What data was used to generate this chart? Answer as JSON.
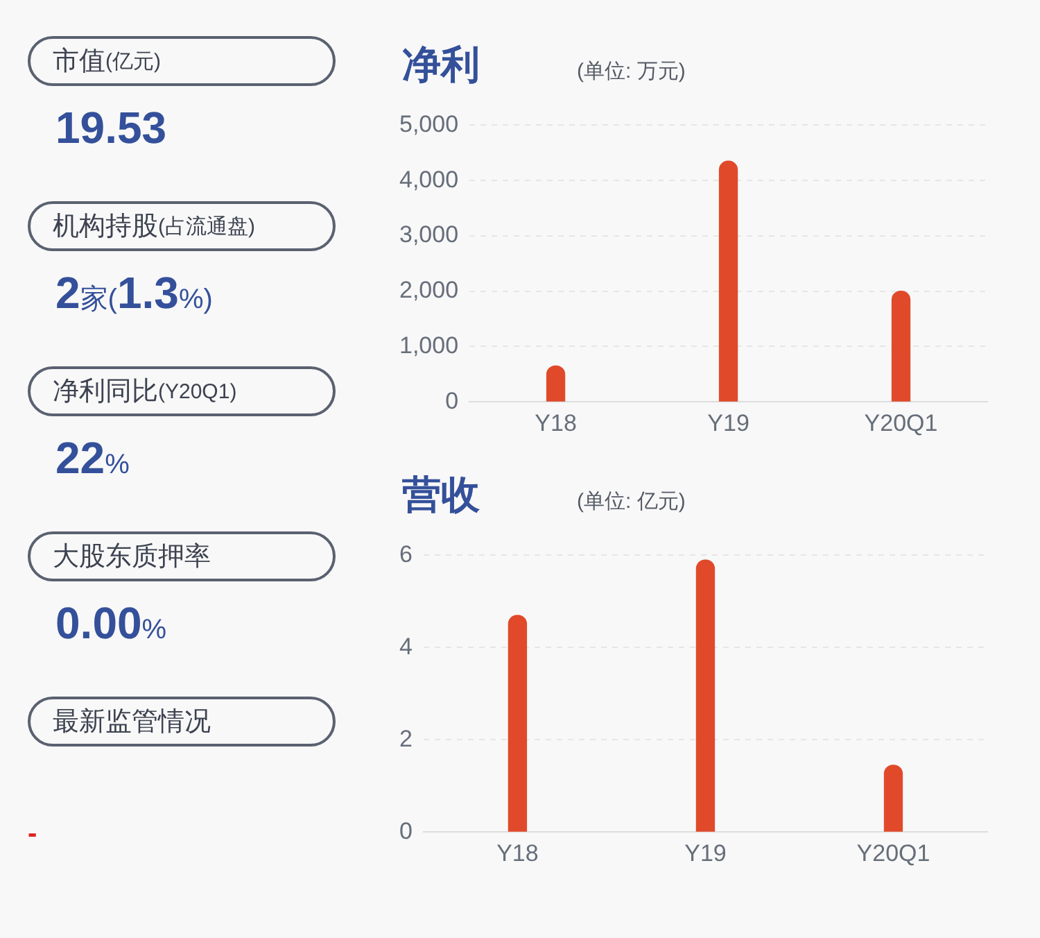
{
  "chart_data": [
    {
      "type": "other",
      "annotations": [
        "市值(亿元)",
        "19.53",
        "机构持股(占流通盘)",
        "2家(1.3%)",
        "净利同比(Y20Q1)",
        "22%",
        "大股东质押率",
        "0.00%",
        "最新监管情况",
        "-"
      ]
    },
    {
      "type": "bar",
      "title": "净利",
      "subtitle": "(单位: 万元)",
      "categories": [
        "Y18",
        "Y19",
        "Y20Q1"
      ],
      "values": [
        650,
        4350,
        2000
      ],
      "color": "#e04a2a",
      "ylim": [
        0,
        5000
      ],
      "yticks": [
        0,
        {
          "value": 1000,
          "label": "1,000"
        },
        {
          "value": 2000,
          "label": "2,000"
        },
        {
          "value": 3000,
          "label": "3,000"
        },
        {
          "value": 4000,
          "label": "4,000"
        },
        {
          "value": 5000,
          "label": "5,000"
        }
      ],
      "grid": "y"
    },
    {
      "type": "bar",
      "title": "营收",
      "subtitle": "(单位: 亿元)",
      "categories": [
        "Y18",
        "Y19",
        "Y20Q1"
      ],
      "values": [
        4.7,
        5.9,
        1.45
      ],
      "color": "#e04a2a",
      "ylim": [
        0,
        6
      ],
      "yticks": [
        0,
        2,
        4,
        6
      ],
      "grid": "y"
    }
  ]
}
